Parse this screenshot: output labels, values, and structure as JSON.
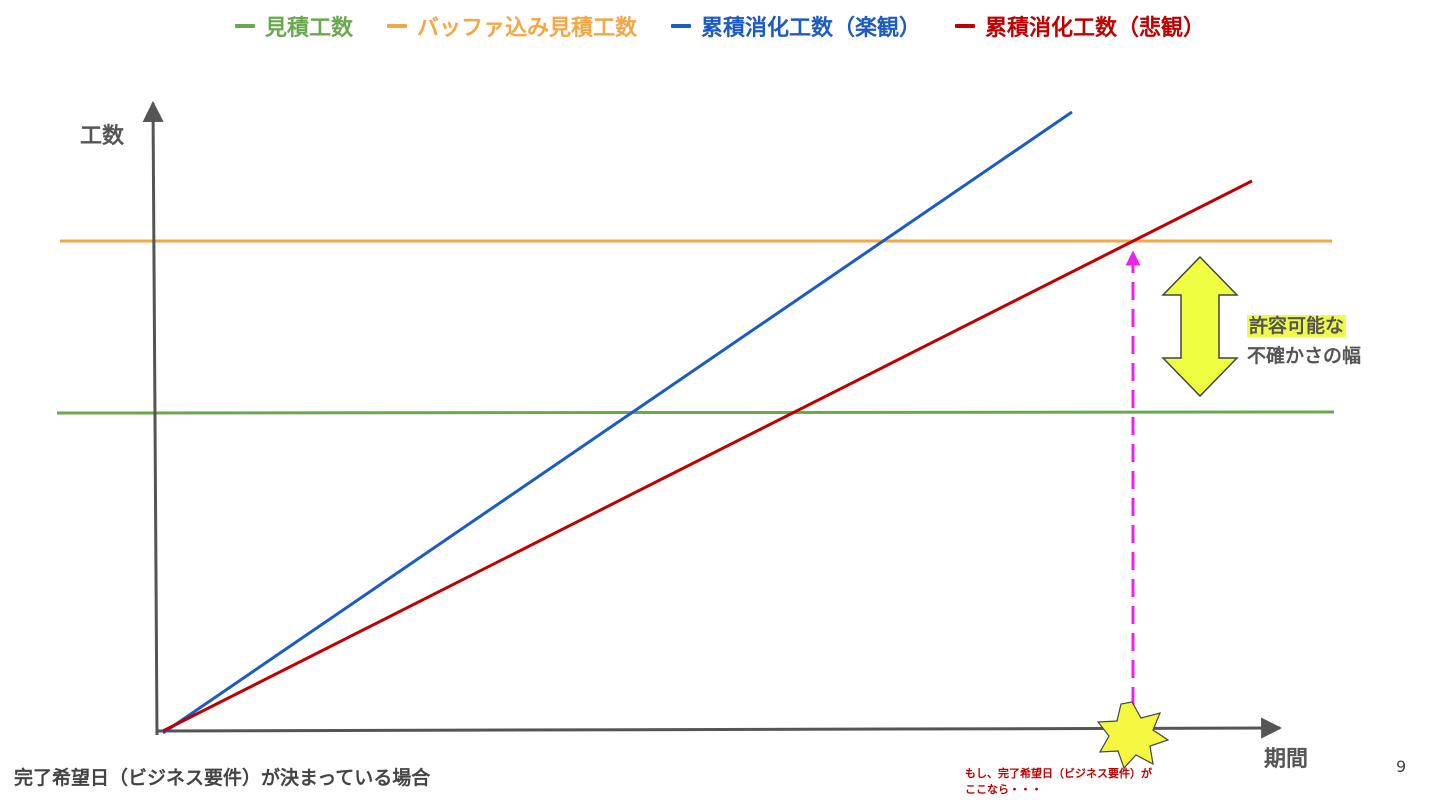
{
  "legend": [
    {
      "label": "見積工数",
      "color": "#6aa84f"
    },
    {
      "label": "バッファ込み見積工数",
      "color": "#f6a745"
    },
    {
      "label": "累積消化工数（楽観）",
      "color": "#1c5bc4"
    },
    {
      "label": "累積消化工数（悲観）",
      "color": "#c00000"
    }
  ],
  "axes": {
    "y_label": "工数",
    "x_label": "期間",
    "color": "#555555"
  },
  "range": {
    "line1": "許容可能な",
    "line2": "不確かさの幅",
    "arrow_color": "#eeff41"
  },
  "note": {
    "line1": "もし、完了希望日（ビジネス要件）が",
    "line2": "ここなら・・・",
    "marker_color": "#f4f73f",
    "dash_color": "#ee22ee"
  },
  "caption": "完了希望日（ビジネス要件）が決まっている場合",
  "page_number": "9"
}
